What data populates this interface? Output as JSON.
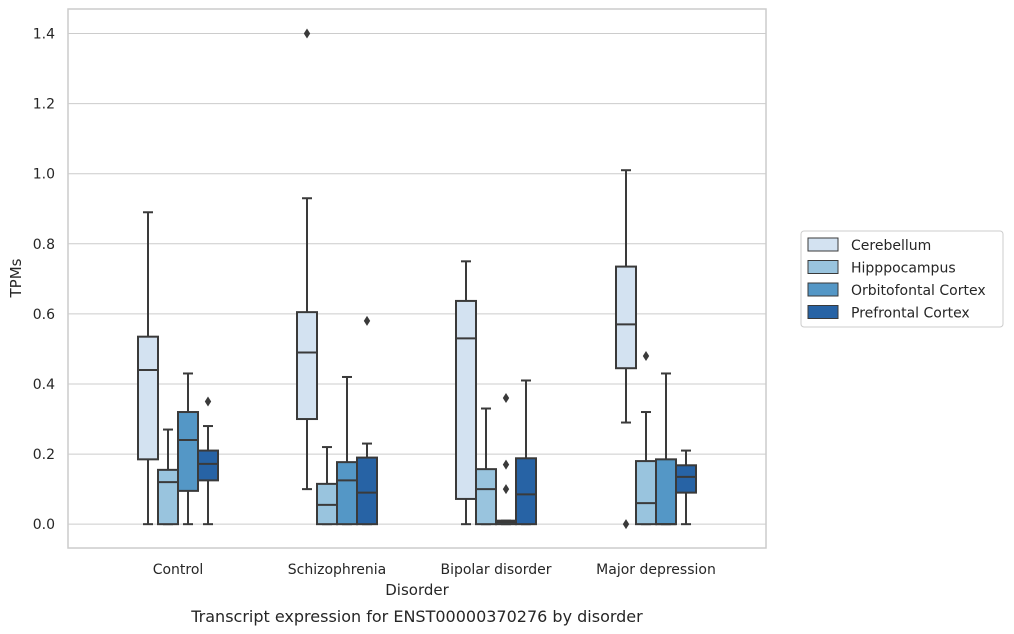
{
  "chart_data": {
    "type": "box",
    "title": "",
    "caption": "Transcript expression for ENST00000370276 by disorder",
    "xlabel": "Disorder",
    "ylabel": "TPMs",
    "ylim": [
      -0.068,
      1.47
    ],
    "yticks": [
      0.0,
      0.2,
      0.4,
      0.6,
      0.8,
      1.0,
      1.2,
      1.4
    ],
    "ytick_labels": [
      "0.0",
      "0.2",
      "0.4",
      "0.6",
      "0.8",
      "1.0",
      "1.2",
      "1.4"
    ],
    "grid": "horizontal",
    "legend_position": "right",
    "categories": [
      "Control",
      "Schizophrenia",
      "Bipolar disorder",
      "Major depression"
    ],
    "series": [
      {
        "name": "Cerebellum",
        "color": "#d3e2f1",
        "boxes": [
          {
            "whislo": 0.0,
            "q1": 0.185,
            "median": 0.44,
            "q3": 0.535,
            "whishi": 0.89,
            "fliers": []
          },
          {
            "whislo": 0.1,
            "q1": 0.3,
            "median": 0.49,
            "q3": 0.605,
            "whishi": 0.93,
            "fliers": [
              1.4
            ]
          },
          {
            "whislo": 0.0,
            "q1": 0.072,
            "median": 0.53,
            "q3": 0.637,
            "whishi": 0.75,
            "fliers": []
          },
          {
            "whislo": 0.29,
            "q1": 0.445,
            "median": 0.57,
            "q3": 0.735,
            "whishi": 1.01,
            "fliers": [
              0.0
            ]
          }
        ]
      },
      {
        "name": "Hipppocampus",
        "color": "#99c4de",
        "boxes": [
          {
            "whislo": 0.0,
            "q1": 0.0,
            "median": 0.12,
            "q3": 0.155,
            "whishi": 0.27,
            "fliers": []
          },
          {
            "whislo": 0.0,
            "q1": 0.0,
            "median": 0.055,
            "q3": 0.115,
            "whishi": 0.22,
            "fliers": []
          },
          {
            "whislo": 0.0,
            "q1": 0.0,
            "median": 0.1,
            "q3": 0.157,
            "whishi": 0.33,
            "fliers": []
          },
          {
            "whislo": 0.0,
            "q1": 0.0,
            "median": 0.06,
            "q3": 0.18,
            "whishi": 0.32,
            "fliers": [
              0.48
            ]
          }
        ]
      },
      {
        "name": "Orbitofontal Cortex",
        "color": "#5497c6",
        "boxes": [
          {
            "whislo": 0.0,
            "q1": 0.095,
            "median": 0.24,
            "q3": 0.32,
            "whishi": 0.43,
            "fliers": []
          },
          {
            "whislo": 0.0,
            "q1": 0.0,
            "median": 0.125,
            "q3": 0.177,
            "whishi": 0.42,
            "fliers": []
          },
          {
            "whislo": 0.0,
            "q1": 0.0,
            "median": 0.005,
            "q3": 0.01,
            "whishi": 0.01,
            "fliers": [
              0.1,
              0.17,
              0.36
            ]
          },
          {
            "whislo": 0.0,
            "q1": 0.0,
            "median": 0.0,
            "q3": 0.185,
            "whishi": 0.43,
            "fliers": []
          }
        ]
      },
      {
        "name": "Prefrontal Cortex",
        "color": "#2763a5",
        "boxes": [
          {
            "whislo": 0.0,
            "q1": 0.125,
            "median": 0.172,
            "q3": 0.21,
            "whishi": 0.28,
            "fliers": [
              0.35
            ]
          },
          {
            "whislo": 0.0,
            "q1": 0.0,
            "median": 0.09,
            "q3": 0.19,
            "whishi": 0.23,
            "fliers": [
              0.58
            ]
          },
          {
            "whislo": 0.0,
            "q1": 0.0,
            "median": 0.085,
            "q3": 0.188,
            "whishi": 0.41,
            "fliers": []
          },
          {
            "whislo": 0.0,
            "q1": 0.09,
            "median": 0.135,
            "q3": 0.168,
            "whishi": 0.21,
            "fliers": []
          }
        ]
      }
    ]
  }
}
